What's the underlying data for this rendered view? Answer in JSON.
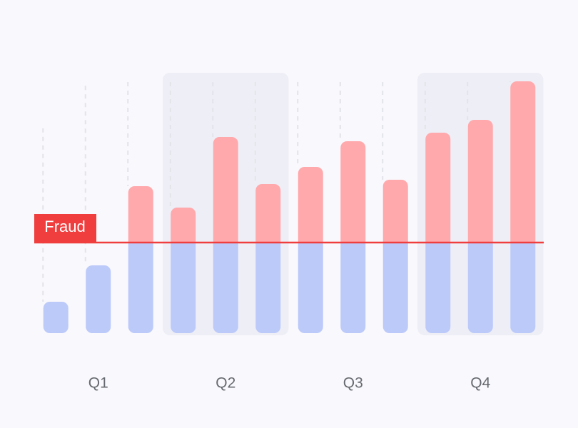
{
  "chart_data": {
    "type": "bar",
    "groups": [
      "Q1",
      "Q2",
      "Q3",
      "Q4"
    ],
    "categories": [
      null,
      null,
      null,
      null,
      null,
      null,
      null,
      null,
      null,
      null,
      null,
      null
    ],
    "values": [
      44,
      95,
      206,
      176,
      275,
      209,
      233,
      269,
      215,
      281,
      299,
      353
    ],
    "ylim": [
      0,
      400
    ],
    "threshold": {
      "label": "Fraud",
      "value": 127
    },
    "highlighted_groups": [
      1,
      3
    ],
    "color_below": "#bccafa",
    "color_above": "#ffa9ac",
    "threshold_color": "#f03e3e"
  }
}
